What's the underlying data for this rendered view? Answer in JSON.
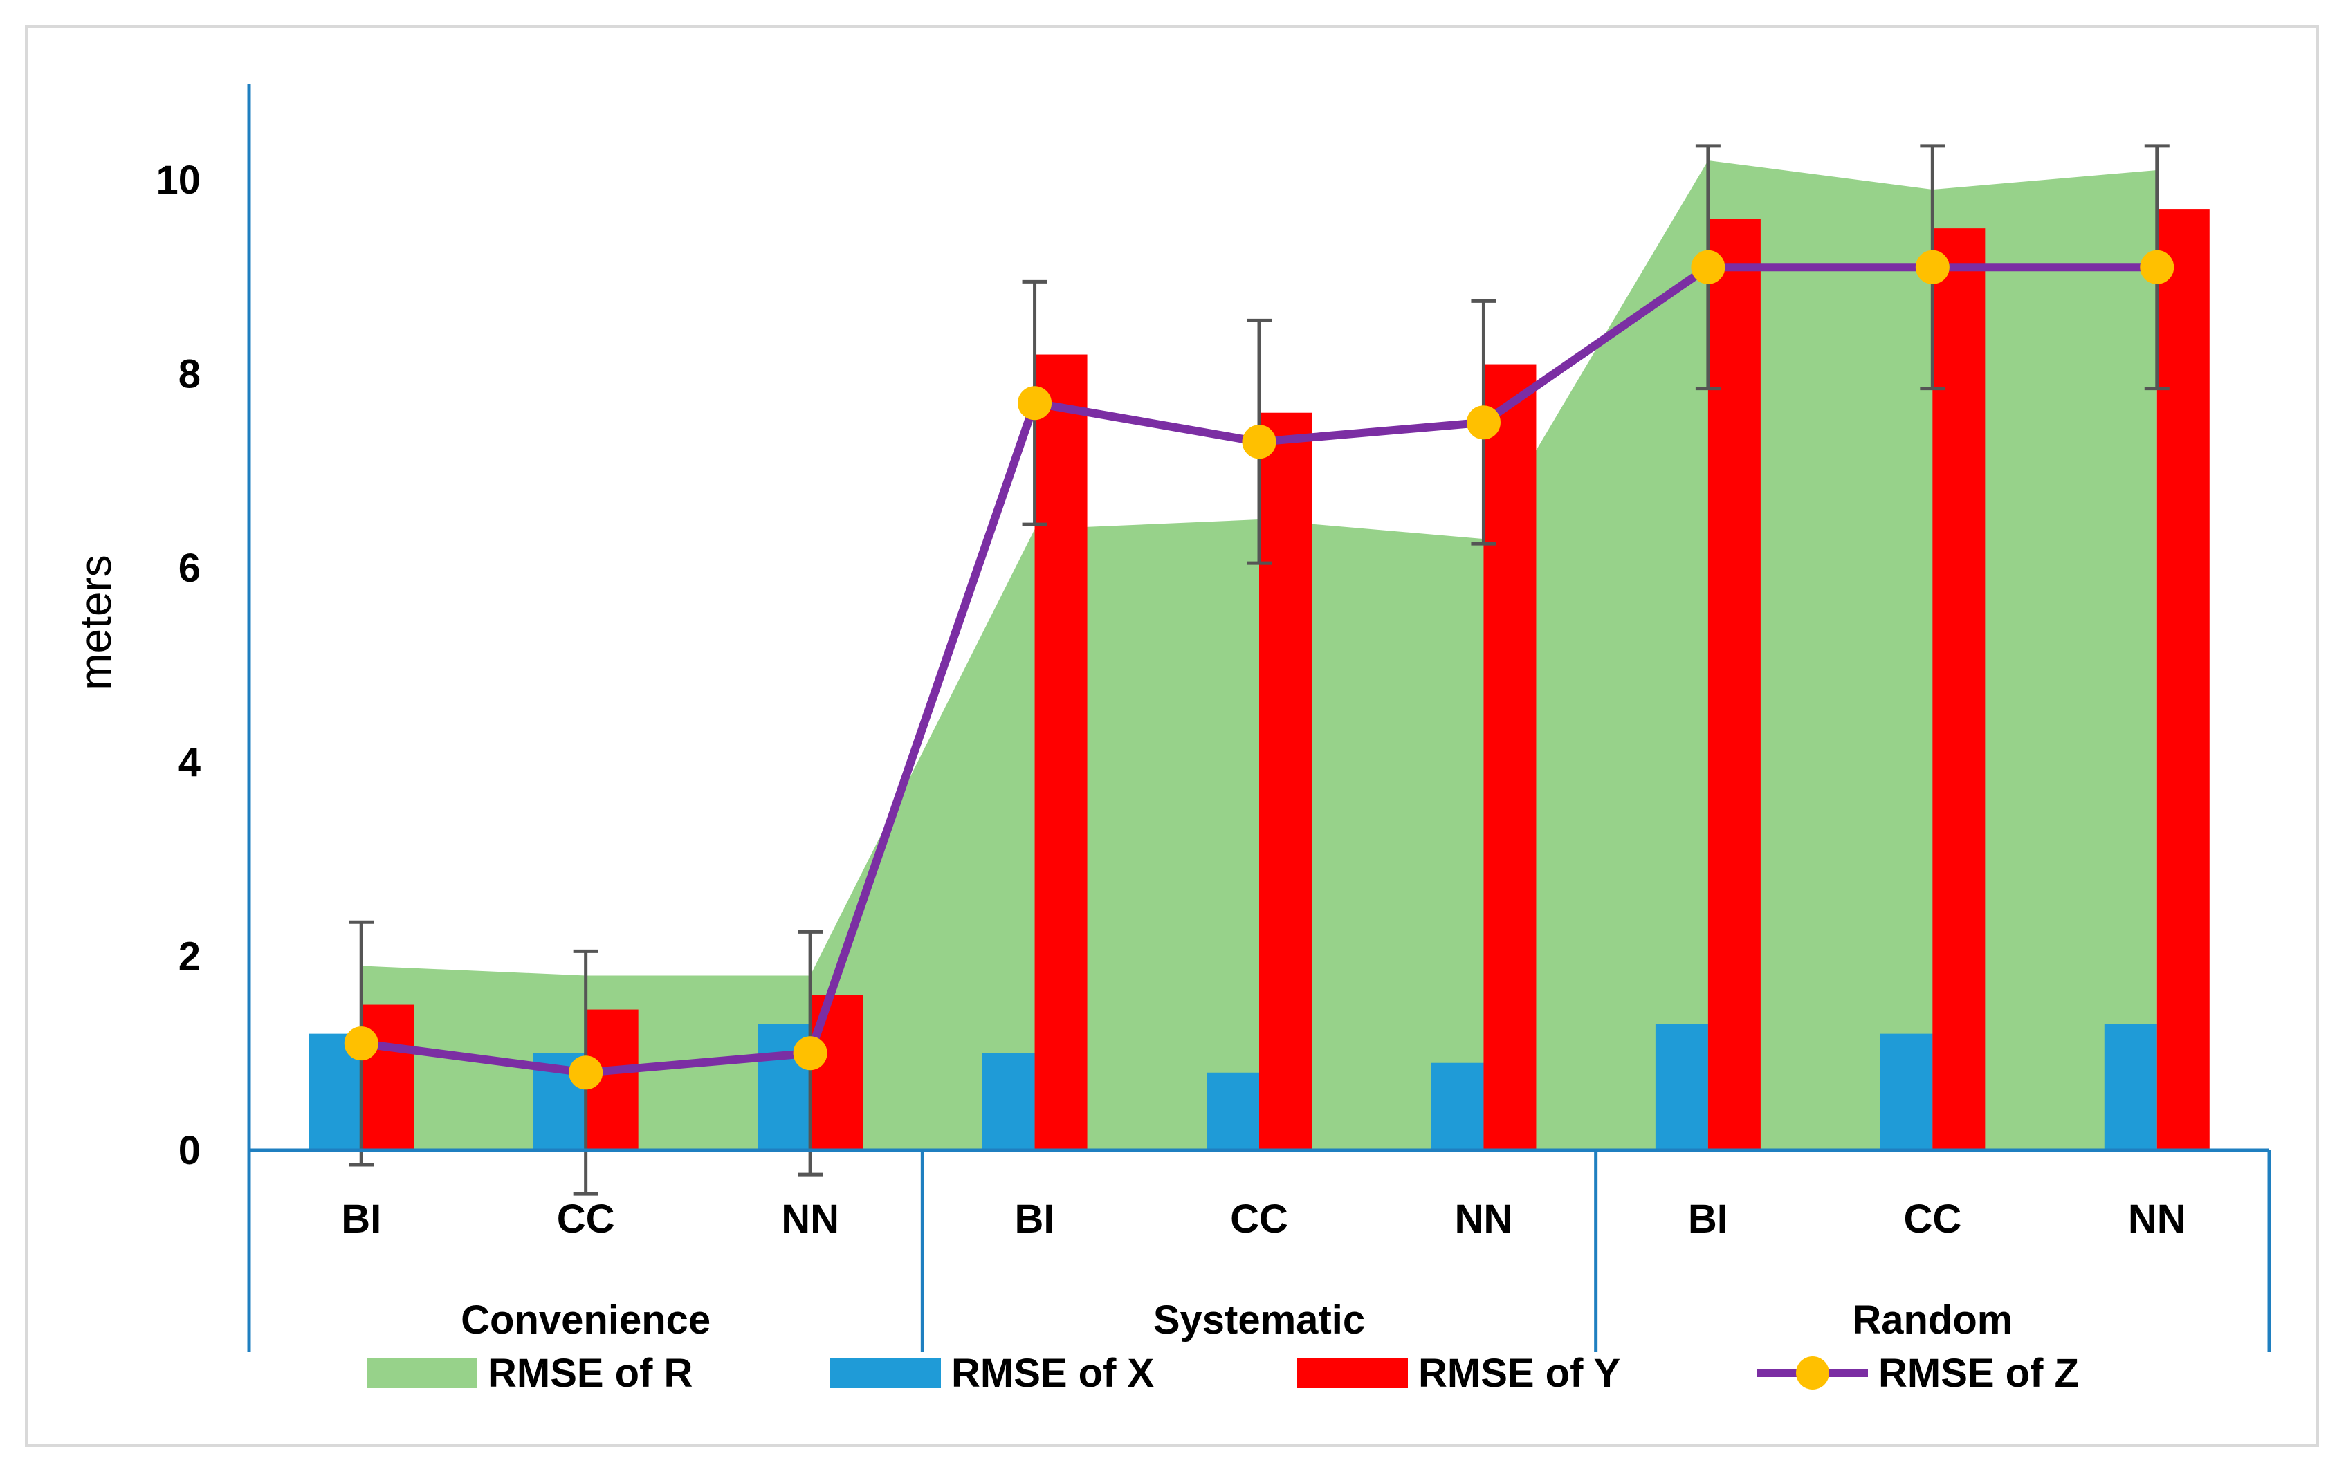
{
  "chart_data": {
    "type": "bar",
    "title": "",
    "xlabel": "",
    "ylabel": "meters",
    "ylim": [
      0,
      11
    ],
    "yticks": [
      0,
      2,
      4,
      6,
      8,
      10
    ],
    "groups": [
      {
        "name": "Convenience",
        "categories": [
          "BI",
          "CC",
          "NN"
        ]
      },
      {
        "name": "Systematic",
        "categories": [
          "BI",
          "CC",
          "NN"
        ]
      },
      {
        "name": "Random",
        "categories": [
          "BI",
          "CC",
          "NN"
        ]
      }
    ],
    "series": [
      {
        "name": "RMSE of R",
        "kind": "area",
        "color": "#97d28a",
        "values": [
          1.9,
          1.8,
          1.8,
          6.4,
          6.5,
          6.3,
          10.2,
          9.9,
          10.1
        ]
      },
      {
        "name": "RMSE of X",
        "kind": "bar",
        "color": "#1f9bd7",
        "values": [
          1.2,
          1.0,
          1.3,
          1.0,
          0.8,
          0.9,
          1.3,
          1.2,
          1.3
        ]
      },
      {
        "name": "RMSE of Y",
        "kind": "bar",
        "color": "#ff0000",
        "values": [
          1.5,
          1.45,
          1.6,
          8.2,
          7.6,
          8.1,
          9.6,
          9.5,
          9.7
        ]
      },
      {
        "name": "RMSE of Z",
        "kind": "line",
        "color": "#7b2ea3",
        "marker_color": "#ffc000",
        "values": [
          1.1,
          0.8,
          1.0,
          7.7,
          7.3,
          7.5,
          9.1,
          9.1,
          9.1
        ],
        "error": [
          1.25,
          1.25,
          1.25,
          1.25,
          1.25,
          1.25,
          1.25,
          1.25,
          1.25
        ]
      }
    ],
    "legend_position": "bottom",
    "grid": false
  }
}
